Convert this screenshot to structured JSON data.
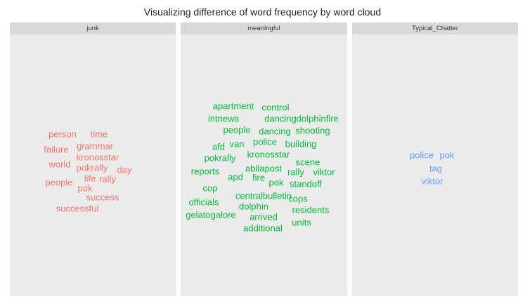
{
  "chart_data": {
    "type": "wordcloud",
    "title": "Visualizing difference of word frequency by word cloud",
    "panels": [
      {
        "label": "junk",
        "color": "#f8766d",
        "words": [
          "person",
          "time",
          "grammar",
          "failure",
          "kronosstar",
          "world",
          "pokrally",
          "day",
          "life",
          "rally",
          "people",
          "pok",
          "success",
          "successful"
        ]
      },
      {
        "label": "meaningful",
        "color": "#00ba38",
        "words": [
          "apartment",
          "control",
          "intnews",
          "dancingdolphinfire",
          "people",
          "dancing",
          "shooting",
          "afd",
          "van",
          "police",
          "building",
          "pokrally",
          "kronosstar",
          "scene",
          "reports",
          "abilapost",
          "apd",
          "fire",
          "rally",
          "viktor",
          "pok",
          "standoff",
          "cop",
          "centralbulletin",
          "cops",
          "officials",
          "dolphin",
          "residents",
          "gelatogalore",
          "arrived",
          "units",
          "additional"
        ]
      },
      {
        "label": "Typical_Chatter",
        "color": "#619cff",
        "words": [
          "police",
          "pok",
          "tag",
          "viktor"
        ]
      }
    ]
  }
}
